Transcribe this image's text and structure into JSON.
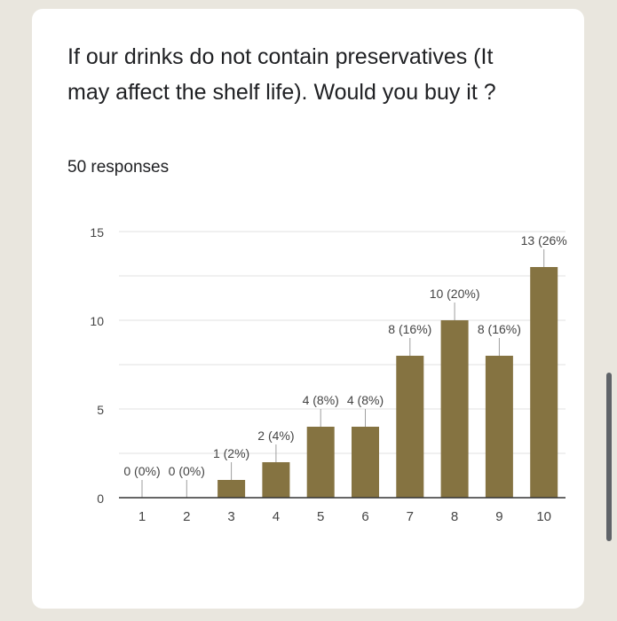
{
  "question": {
    "title": "If our drinks do not contain preservatives (It may affect the shelf life). Would you buy it ?",
    "responses": "50 responses"
  },
  "colors": {
    "bar": "#857341",
    "grid": "#e0e0e0",
    "axis": "#333333",
    "text": "#444444"
  },
  "chart_data": {
    "type": "bar",
    "categories": [
      "1",
      "2",
      "3",
      "4",
      "5",
      "6",
      "7",
      "8",
      "9",
      "10"
    ],
    "values": [
      0,
      0,
      1,
      2,
      4,
      4,
      8,
      10,
      8,
      13
    ],
    "data_labels": [
      "0 (0%)",
      "0 (0%)",
      "1 (2%)",
      "2 (4%)",
      "4 (8%)",
      "4 (8%)",
      "8 (16%)",
      "10 (20%)",
      "8 (16%)",
      "13 (26%"
    ],
    "yticks": [
      0,
      5,
      10,
      15
    ],
    "ylim": [
      0,
      15
    ],
    "grid": true,
    "legend": "none"
  }
}
